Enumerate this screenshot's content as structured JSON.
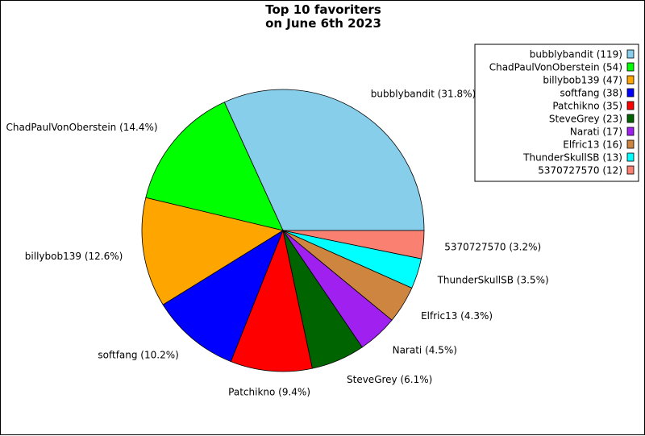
{
  "chart_data": {
    "type": "pie",
    "title": [
      "Top 10 favoriters",
      "on June 6th 2023"
    ],
    "start_angle_deg": 0,
    "direction": "counterclockwise",
    "legend_position": "top-right",
    "series": [
      {
        "name": "bubblybandit",
        "value": 119,
        "percent_label": "31.8%",
        "legend_label": "bubblybandit (119)",
        "color": "#87ceeb"
      },
      {
        "name": "ChadPaulVonOberstein",
        "value": 54,
        "percent_label": "14.4%",
        "legend_label": "ChadPaulVonOberstein (54)",
        "color": "#00ff00"
      },
      {
        "name": "billybob139",
        "value": 47,
        "percent_label": "12.6%",
        "legend_label": "billybob139 (47)",
        "color": "#ffa500"
      },
      {
        "name": "softfang",
        "value": 38,
        "percent_label": "10.2%",
        "legend_label": "softfang (38)",
        "color": "#0000ff"
      },
      {
        "name": "Patchikno",
        "value": 35,
        "percent_label": "9.4%",
        "legend_label": "Patchikno (35)",
        "color": "#ff0000"
      },
      {
        "name": "SteveGrey",
        "value": 23,
        "percent_label": "6.1%",
        "legend_label": "SteveGrey (23)",
        "color": "#006400"
      },
      {
        "name": "Narati",
        "value": 17,
        "percent_label": "4.5%",
        "legend_label": "Narati (17)",
        "color": "#a020f0"
      },
      {
        "name": "Elfric13",
        "value": 16,
        "percent_label": "4.3%",
        "legend_label": "Elfric13 (16)",
        "color": "#cd853f"
      },
      {
        "name": "ThunderSkullSB",
        "value": 13,
        "percent_label": "3.5%",
        "legend_label": "ThunderSkullSB (13)",
        "color": "#00ffff"
      },
      {
        "name": "5370727570",
        "value": 12,
        "percent_label": "3.2%",
        "legend_label": "5370727570 (12)",
        "color": "#fa8072"
      }
    ]
  }
}
